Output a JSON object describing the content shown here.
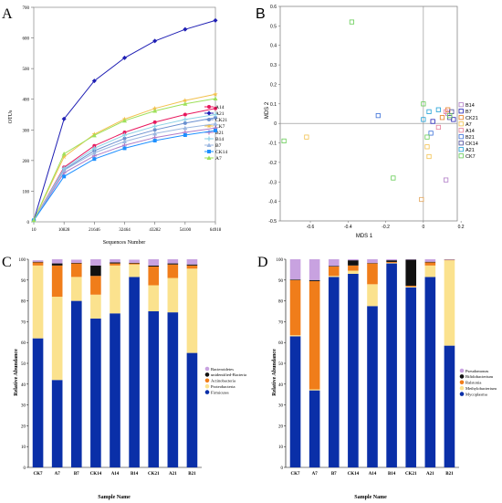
{
  "panel_letters": [
    "A",
    "B",
    "C",
    "D"
  ],
  "chart_data": [
    {
      "panel": "A",
      "type": "line",
      "xlabel": "Sequences Number",
      "ylabel": "OTUs",
      "ylim": [
        0,
        700
      ],
      "yticks": [
        0,
        100,
        200,
        300,
        400,
        500,
        600,
        700
      ],
      "xticks": [
        "10",
        "10828",
        "21646",
        "32464",
        "43282",
        "54100",
        "64918"
      ],
      "x": [
        10,
        10828,
        21646,
        32464,
        43282,
        54100,
        64918
      ],
      "legend_position": "right",
      "series": [
        {
          "name": "A14",
          "color": "#e8175d",
          "marker": "circle",
          "values": [
            5,
            178,
            248,
            292,
            325,
            350,
            370
          ]
        },
        {
          "name": "A21",
          "color": "#1f1fb4",
          "marker": "diamond",
          "values": [
            5,
            336,
            460,
            535,
            590,
            628,
            657
          ]
        },
        {
          "name": "CK21",
          "color": "#6a8fcf",
          "marker": "circle",
          "values": [
            5,
            170,
            232,
            272,
            300,
            322,
            340
          ]
        },
        {
          "name": "CK7",
          "color": "#f2c14e",
          "marker": "star",
          "values": [
            5,
            212,
            286,
            335,
            370,
            396,
            416
          ]
        },
        {
          "name": "B21",
          "color": "#b07cc6",
          "marker": "plus",
          "values": [
            5,
            160,
            215,
            250,
            275,
            292,
            306
          ]
        },
        {
          "name": "B14",
          "color": "#8ed1e6",
          "marker": "plus",
          "values": [
            5,
            175,
            240,
            283,
            312,
            334,
            350
          ]
        },
        {
          "name": "B7",
          "color": "#9bb7e0",
          "marker": "triangle",
          "values": [
            5,
            168,
            225,
            262,
            288,
            306,
            320
          ]
        },
        {
          "name": "CK14",
          "color": "#1e90ff",
          "marker": "square",
          "values": [
            5,
            148,
            205,
            240,
            265,
            283,
            298
          ]
        },
        {
          "name": "A7",
          "color": "#9ee05a",
          "marker": "triangle",
          "values": [
            5,
            222,
            282,
            330,
            362,
            385,
            402
          ]
        }
      ]
    },
    {
      "panel": "B",
      "type": "scatter",
      "xlabel": "MDS 1",
      "ylabel": "MDS 2",
      "xlim": [
        -0.76,
        0.18
      ],
      "ylim": [
        -0.5,
        0.6
      ],
      "xticks": [
        -0.6,
        -0.4,
        -0.2,
        0,
        0.2
      ],
      "yticks": [
        -0.5,
        -0.4,
        -0.3,
        -0.2,
        -0.1,
        0,
        0.1,
        0.2,
        0.3,
        0.4,
        0.5,
        0.6
      ],
      "legend_position": "right",
      "series": [
        {
          "name": "B14",
          "color": "#b07cc6",
          "points": [
            [
              0.12,
              -0.29
            ],
            [
              0.13,
              0.05
            ]
          ]
        },
        {
          "name": "B7",
          "color": "#1f1fb4",
          "points": [
            [
              0.05,
              0.01
            ],
            [
              0.16,
              0.02
            ]
          ]
        },
        {
          "name": "CK21",
          "color": "#e67e22",
          "points": [
            [
              0.1,
              0.03
            ],
            [
              0.13,
              0.07
            ]
          ]
        },
        {
          "name": "A7",
          "color": "#f2c14e",
          "points": [
            [
              -0.62,
              -0.07
            ],
            [
              0.02,
              -0.12
            ]
          ]
        },
        {
          "name": "A14",
          "color": "#e87f9a",
          "points": [
            [
              0.08,
              -0.02
            ],
            [
              0.12,
              0.06
            ]
          ]
        },
        {
          "name": "B21",
          "color": "#3a6fd8",
          "points": [
            [
              -0.24,
              0.04
            ],
            [
              0.04,
              -0.05
            ]
          ]
        },
        {
          "name": "CK14",
          "color": "#4a4a9a",
          "points": [
            [
              0.15,
              0.06
            ],
            [
              0.14,
              0.03
            ]
          ]
        },
        {
          "name": "A21",
          "color": "#1e9fd6",
          "points": [
            [
              0.03,
              0.06
            ],
            [
              0.0,
              0.02
            ],
            [
              0.08,
              0.07
            ]
          ]
        },
        {
          "name": "CK7",
          "color": "#66cc55",
          "points": [
            [
              -0.74,
              -0.09
            ],
            [
              -0.38,
              0.52
            ],
            [
              -0.16,
              -0.28
            ],
            [
              0.0,
              0.1
            ],
            [
              0.02,
              -0.07
            ],
            [
              0.14,
              0.04
            ]
          ]
        }
      ],
      "extra_points": [
        {
          "color": "#e2a45a",
          "x": -0.01,
          "y": -0.39
        },
        {
          "color": "#f2c14e",
          "x": 0.03,
          "y": -0.17
        }
      ]
    },
    {
      "panel": "C",
      "type": "bar",
      "stacked": true,
      "xlabel": "Sample Name",
      "ylabel": "Relative Abundance",
      "ylim": [
        0,
        100
      ],
      "yticks": [
        0,
        10,
        20,
        30,
        40,
        50,
        60,
        70,
        80,
        90,
        100
      ],
      "categories": [
        "CK7",
        "A7",
        "B7",
        "CK14",
        "A14",
        "B14",
        "CK21",
        "A21",
        "B21"
      ],
      "legend_position": "right",
      "series": [
        {
          "name": "Firmicutes",
          "color": "#0a2fa8",
          "values": [
            62,
            42,
            80,
            71.5,
            74,
            91.5,
            75,
            74.5,
            55
          ]
        },
        {
          "name": "Proteobacteria",
          "color": "#fbe28e",
          "values": [
            35,
            40,
            11.5,
            11.5,
            23,
            6,
            12.5,
            16.5,
            40.5
          ]
        },
        {
          "name": "Actinobacteria",
          "color": "#f07d1a",
          "values": [
            1.5,
            15,
            6.5,
            9,
            1,
            0.5,
            9,
            6.5,
            1.5
          ]
        },
        {
          "name": "unidentified-Bacteria",
          "color": "#111111",
          "values": [
            0.3,
            1,
            0.3,
            5,
            0.5,
            0.3,
            0.5,
            0.5,
            0.5
          ]
        },
        {
          "name": "Bacteroidetes",
          "color": "#c8a2e0",
          "values": [
            0.7,
            2,
            1.5,
            3,
            1.5,
            1.5,
            3,
            2,
            2.5
          ]
        }
      ]
    },
    {
      "panel": "D",
      "type": "bar",
      "stacked": true,
      "xlabel": "Sample Name",
      "ylabel": "Relative Abundance",
      "ylim": [
        0,
        100
      ],
      "yticks": [
        0,
        10,
        20,
        30,
        40,
        50,
        60,
        70,
        80,
        90,
        100
      ],
      "categories": [
        "CK7",
        "A7",
        "B7",
        "CK14",
        "A14",
        "B14",
        "CK21",
        "A21",
        "B21"
      ],
      "legend_position": "right",
      "series": [
        {
          "name": "Mycoplasma",
          "color": "#0a2fa8",
          "values": [
            63,
            37,
            91.5,
            93,
            77.5,
            98,
            86.5,
            91.5,
            58.5
          ]
        },
        {
          "name": "Methylobacterium",
          "color": "#fbe28e",
          "values": [
            0.5,
            0.5,
            0.5,
            1.5,
            10.5,
            0.3,
            0.3,
            5.5,
            41
          ]
        },
        {
          "name": "Ralstonia",
          "color": "#f07d1a",
          "values": [
            26.5,
            52,
            4.5,
            2.5,
            10,
            0.4,
            0.5,
            1.5,
            0.2
          ]
        },
        {
          "name": "Bifidobacterium",
          "color": "#111111",
          "values": [
            0.3,
            0.5,
            0.3,
            2.5,
            0.2,
            0.8,
            12.5,
            0.3,
            0.1
          ]
        },
        {
          "name": "Pseudomonas",
          "color": "#c8a2e0",
          "values": [
            9.7,
            10,
            3.2,
            0.5,
            1.8,
            0.5,
            0.2,
            1.2,
            0.2
          ]
        }
      ]
    }
  ]
}
